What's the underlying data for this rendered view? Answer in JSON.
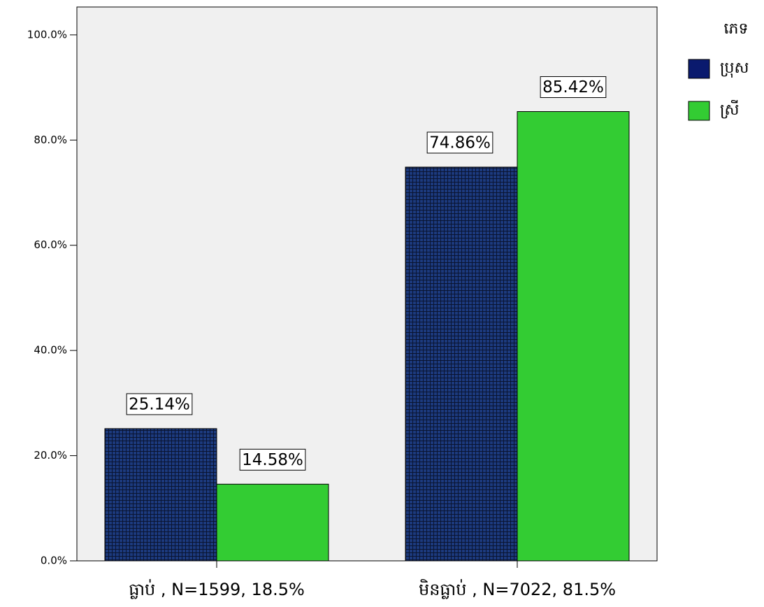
{
  "chart_data": {
    "type": "bar",
    "categories": [
      "ធ្លាប់ , N=1599,  18.5%",
      "មិនធ្លាប់ , N=7022, 81.5%"
    ],
    "legend_title": "ភេទ",
    "series": [
      {
        "name": "ប្រុស",
        "color": "#1c3a7e",
        "pattern": "grid",
        "values": [
          25.14,
          74.86
        ],
        "value_labels": [
          "25.14%",
          "74.86%"
        ]
      },
      {
        "name": "ស្រី",
        "color": "#33cc33",
        "values": [
          14.58,
          85.42
        ],
        "value_labels": [
          "14.58%",
          "85.42%"
        ]
      }
    ],
    "ylim": [
      0,
      105.3
    ],
    "yticks": [
      {
        "value": 0,
        "label": "0.0%"
      },
      {
        "value": 20,
        "label": "20.0%"
      },
      {
        "value": 40,
        "label": "40.0%"
      },
      {
        "value": 60,
        "label": "60.0%"
      },
      {
        "value": 80,
        "label": "80.0%"
      },
      {
        "value": 100,
        "label": "100.0%"
      }
    ],
    "legend": "right",
    "background": "#f0f0f0"
  }
}
